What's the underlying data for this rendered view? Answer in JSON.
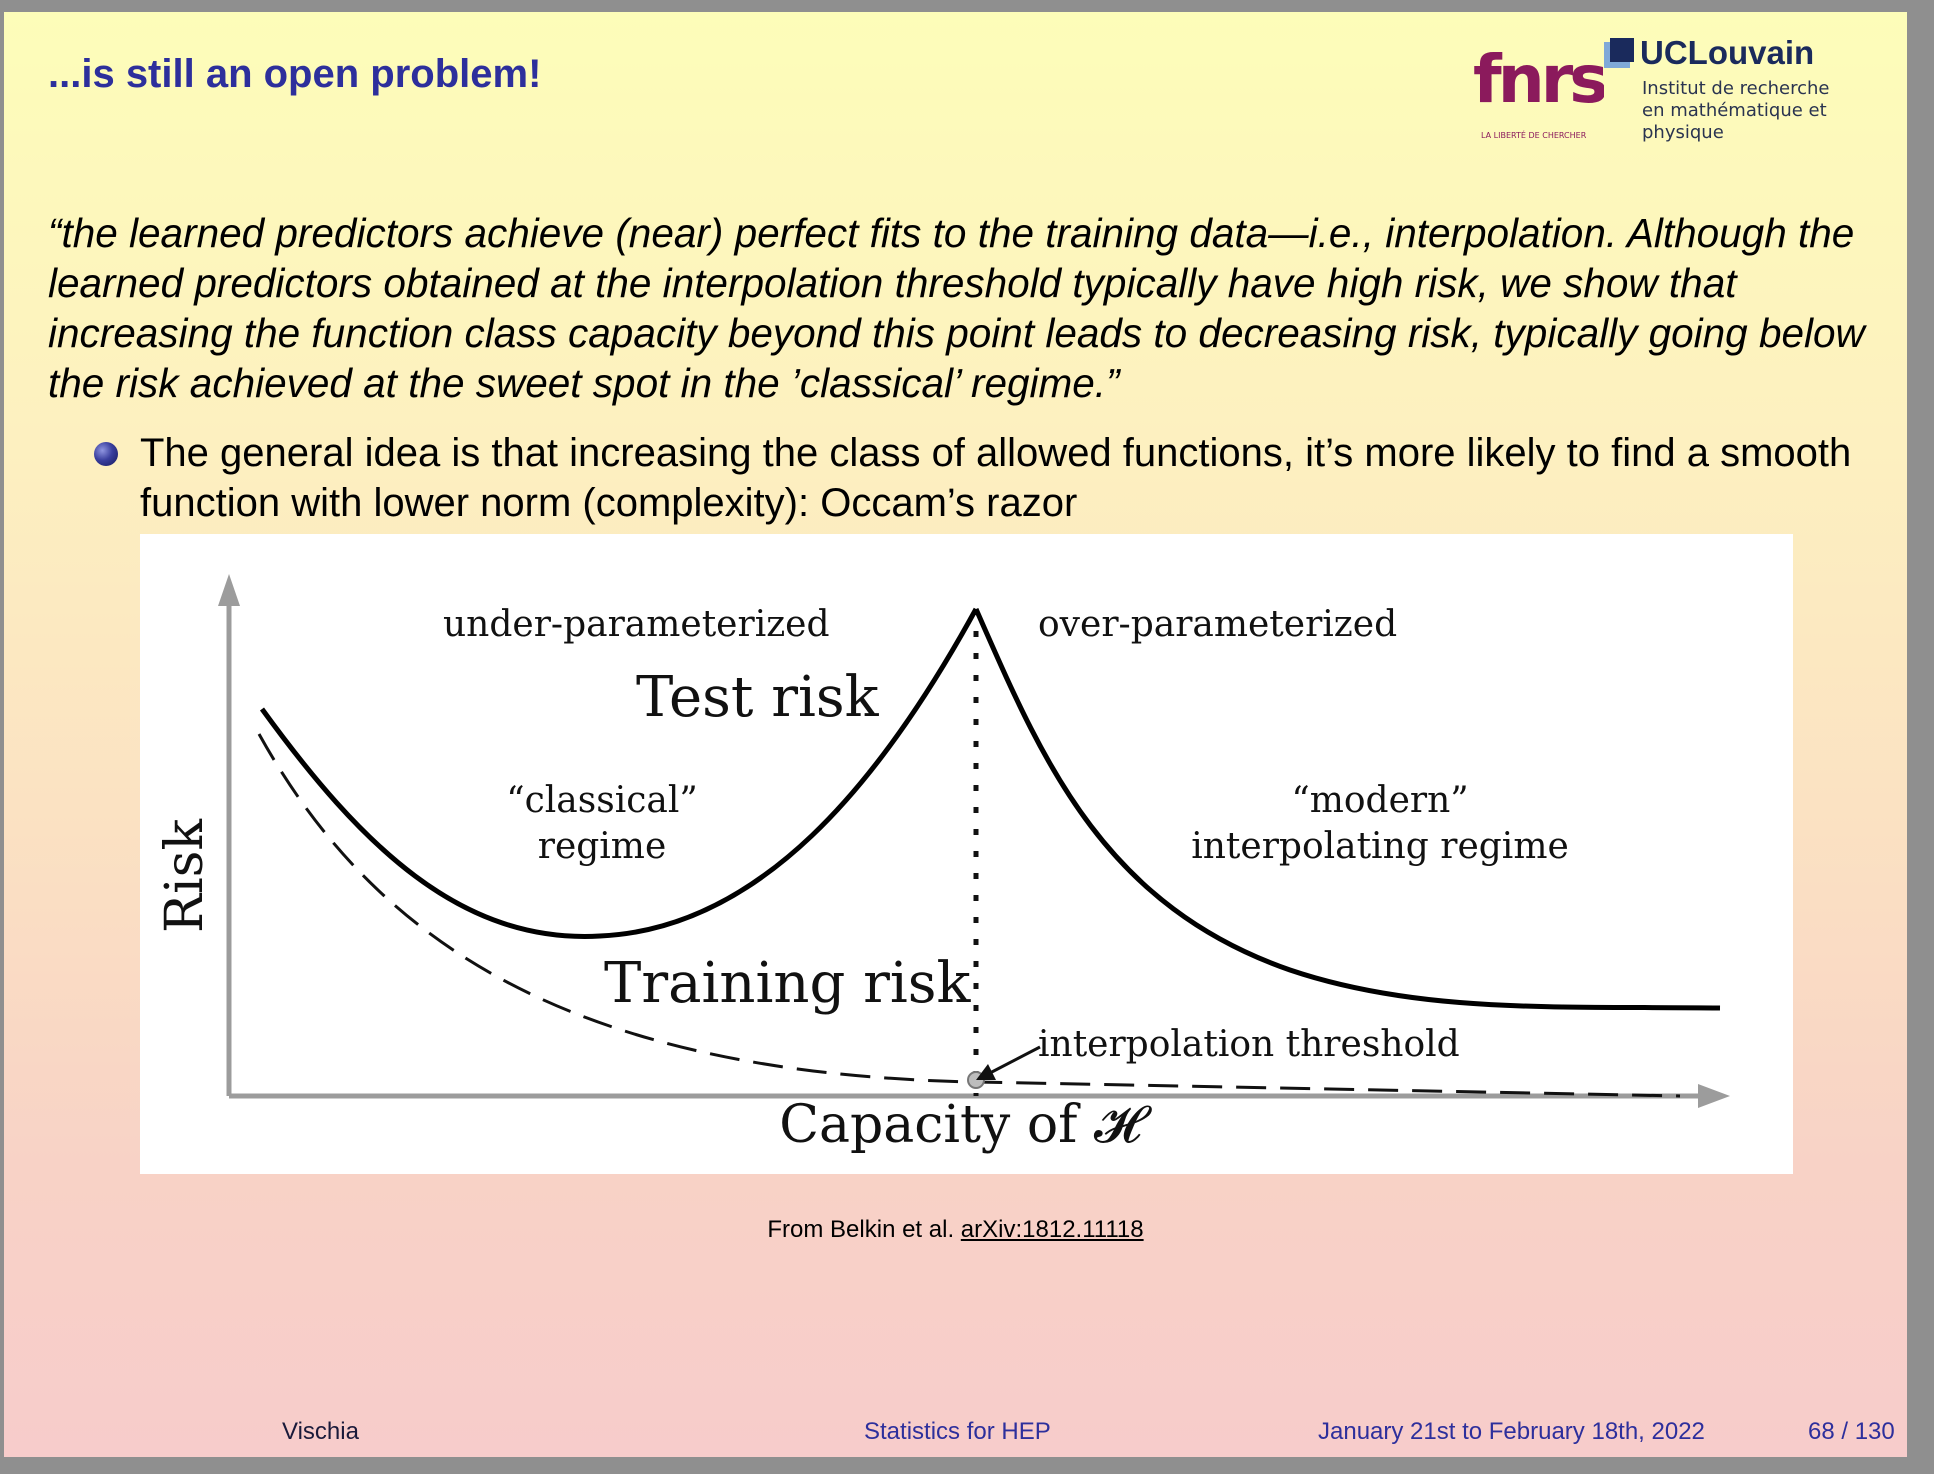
{
  "slide": {
    "title": "...is still an open problem!",
    "quote": "“the learned predictors achieve (near) perfect fits to the training data—i.e., interpolation. Although the learned predictors obtained at the interpolation threshold typically have high risk, we show that increasing the function class capacity beyond this point leads to decreasing risk, typically going below the risk achieved at the sweet spot in the ’classical’ regime.”",
    "bullet": "The general idea is that increasing the class of allowed functions, it’s more likely to find a smooth function with lower norm (complexity): Occam’s razor",
    "caption_prefix": "From Belkin et al.",
    "caption_link": "arXiv:1812.11118"
  },
  "logos": {
    "fnrs_text": "fnrs",
    "fnrs_tagline": "LA LIBERTÉ DE CHERCHER",
    "ucl_name": "UCLouvain",
    "ucl_line1": "Institut de recherche",
    "ucl_line2": "en mathématique et physique"
  },
  "figure": {
    "under_label": "under-parameterized",
    "over_label": "over-parameterized",
    "test_risk": "Test risk",
    "training_risk": "Training risk",
    "classical_line1": "“classical”",
    "classical_line2": "regime",
    "modern_line1": "“modern”",
    "modern_line2": "interpolating regime",
    "threshold_label": "interpolation threshold",
    "y_label": "Risk",
    "x_label": "Capacity of 𝓗"
  },
  "footer": {
    "author": "Vischia",
    "course": "Statistics for HEP",
    "dates": "January 21st to February 18th, 2022",
    "page": "68 / 130"
  },
  "colors": {
    "title": "#2d2f9c",
    "fnrs": "#8b1a5c",
    "ucl": "#1a2a5c"
  }
}
